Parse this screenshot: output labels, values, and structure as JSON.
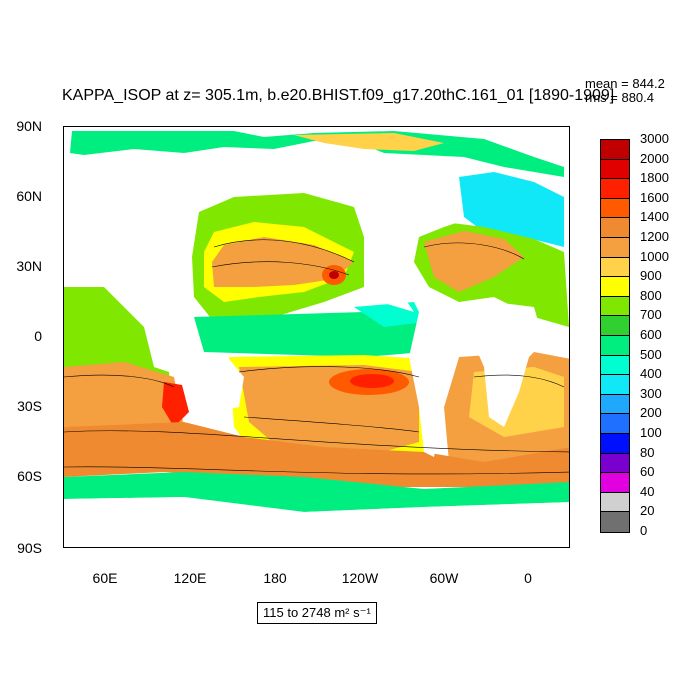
{
  "title": "KAPPA_ISOP at z= 305.1m, b.e20.BHIST.f09_g17.20thC.161_01 [1890-1909]",
  "stats": {
    "mean": "mean = 844.2",
    "rms": "rms = 880.4"
  },
  "range_label": "115 to 2748 m² s⁻¹",
  "y_ticks": [
    "90N",
    "60N",
    "30N",
    "0",
    "30S",
    "60S",
    "90S"
  ],
  "x_ticks": [
    "60E",
    "120E",
    "180",
    "120W",
    "60W",
    "0"
  ],
  "colorbar": {
    "labels": [
      "3000",
      "2000",
      "1800",
      "1600",
      "1400",
      "1200",
      "1000",
      "900",
      "800",
      "700",
      "600",
      "500",
      "400",
      "300",
      "200",
      "100",
      "80",
      "60",
      "40",
      "20",
      "0"
    ],
    "colors": [
      "#c00000",
      "#e00000",
      "#ff2000",
      "#ff5a00",
      "#f08a30",
      "#f5a040",
      "#ffd24a",
      "#ffff00",
      "#80e800",
      "#30d030",
      "#00ee80",
      "#00ffd0",
      "#10e8f8",
      "#20a8ff",
      "#2070ff",
      "#0010ff",
      "#7a00d0",
      "#e000e0",
      "#d0d0d0",
      "#707070"
    ]
  }
}
